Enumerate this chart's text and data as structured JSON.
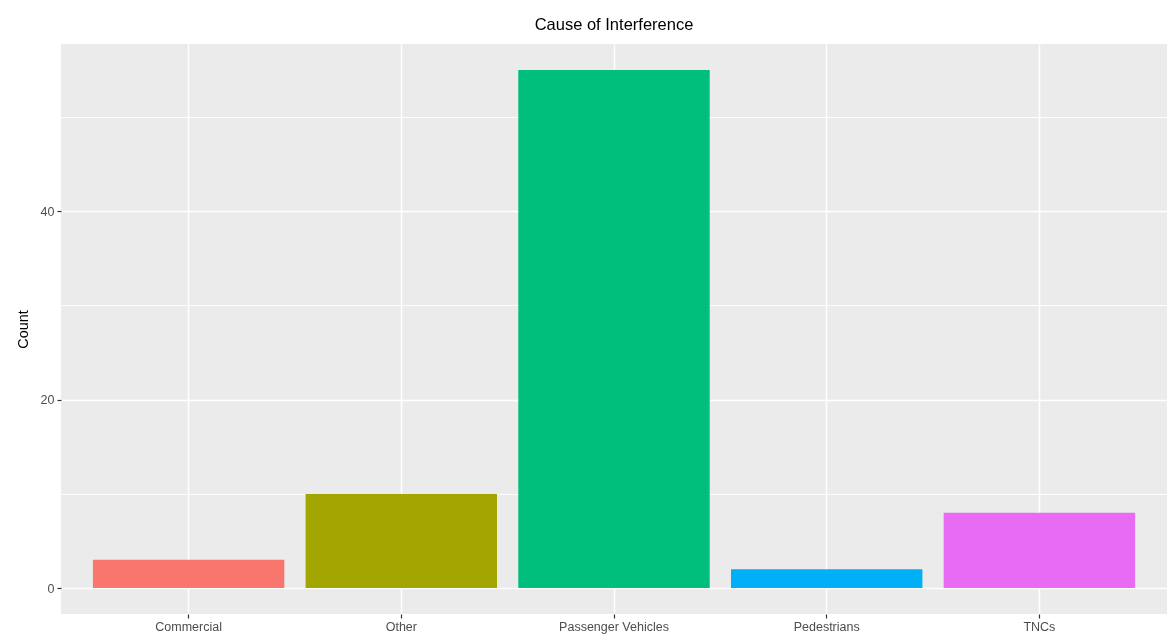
{
  "chart_data": {
    "type": "bar",
    "title": "Cause of Interference",
    "ylabel": "Count",
    "categories": [
      "Commercial",
      "Other",
      "Passenger Vehicles",
      "Pedestrians",
      "TNCs"
    ],
    "values": [
      3,
      10,
      55,
      2,
      8
    ],
    "colors": [
      "#f8766d",
      "#a3a500",
      "#00bf7d",
      "#00b0f6",
      "#e76bf3"
    ],
    "ylim": [
      -2.75,
      57.75
    ],
    "yticks": [
      0,
      {
        "value": 10,
        "label": null
      },
      20,
      {
        "value": 30,
        "label": null
      },
      40,
      {
        "value": 50,
        "label": null
      }
    ],
    "grid": true
  }
}
